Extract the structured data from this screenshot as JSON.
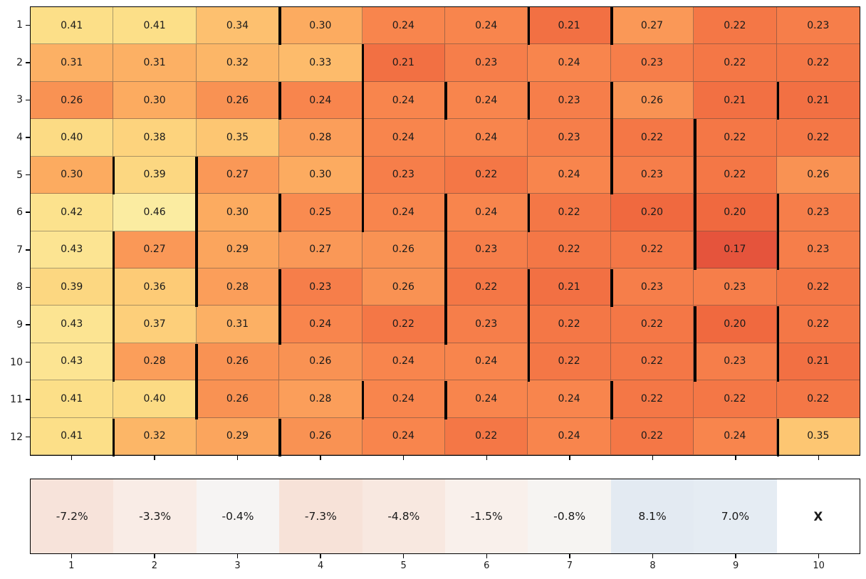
{
  "chart_data": {
    "type": "heatmap",
    "title": "",
    "xlabel": "",
    "ylabel": "",
    "background_color": "#ffffff",
    "text_color": "#1a1a1a",
    "main_heatmap": {
      "row_labels": [
        "1",
        "2",
        "3",
        "4",
        "5",
        "6",
        "7",
        "8",
        "9",
        "10",
        "11",
        "12"
      ],
      "col_labels": [
        "1",
        "2",
        "3",
        "4",
        "5",
        "6",
        "7",
        "8",
        "9",
        "10"
      ],
      "values": [
        [
          0.41,
          0.41,
          0.34,
          0.3,
          0.24,
          0.24,
          0.21,
          0.27,
          0.22,
          0.23
        ],
        [
          0.31,
          0.31,
          0.32,
          0.33,
          0.21,
          0.23,
          0.24,
          0.23,
          0.22,
          0.22
        ],
        [
          0.26,
          0.3,
          0.26,
          0.24,
          0.24,
          0.24,
          0.23,
          0.26,
          0.21,
          0.21
        ],
        [
          0.4,
          0.38,
          0.35,
          0.28,
          0.24,
          0.24,
          0.23,
          0.22,
          0.22,
          0.22
        ],
        [
          0.3,
          0.39,
          0.27,
          0.3,
          0.23,
          0.22,
          0.24,
          0.23,
          0.22,
          0.26
        ],
        [
          0.42,
          0.46,
          0.3,
          0.25,
          0.24,
          0.24,
          0.22,
          0.2,
          0.2,
          0.23
        ],
        [
          0.43,
          0.27,
          0.29,
          0.27,
          0.26,
          0.23,
          0.22,
          0.22,
          0.17,
          0.23
        ],
        [
          0.39,
          0.36,
          0.28,
          0.23,
          0.26,
          0.22,
          0.21,
          0.23,
          0.23,
          0.22
        ],
        [
          0.43,
          0.37,
          0.31,
          0.24,
          0.22,
          0.23,
          0.22,
          0.22,
          0.2,
          0.22
        ],
        [
          0.43,
          0.28,
          0.26,
          0.26,
          0.24,
          0.24,
          0.22,
          0.22,
          0.23,
          0.21
        ],
        [
          0.41,
          0.4,
          0.26,
          0.28,
          0.24,
          0.24,
          0.24,
          0.22,
          0.22,
          0.22
        ],
        [
          0.41,
          0.32,
          0.29,
          0.26,
          0.24,
          0.22,
          0.24,
          0.22,
          0.24,
          0.35
        ]
      ],
      "value_range": [
        0.17,
        0.46
      ],
      "colormap_stops": [
        [
          0.17,
          "#e5543c"
        ],
        [
          0.2,
          "#f0693f"
        ],
        [
          0.24,
          "#f8854d"
        ],
        [
          0.3,
          "#fcab60"
        ],
        [
          0.36,
          "#fdcb76"
        ],
        [
          0.41,
          "#fcdf88"
        ],
        [
          0.46,
          "#fbeca1"
        ]
      ],
      "grid_line_color": "#3c3c3c",
      "spine_color": "#000000",
      "marker_color": "#000000",
      "changepoint_markers": [
        [
          1,
          3
        ],
        [
          1,
          6
        ],
        [
          1,
          7
        ],
        [
          2,
          4
        ],
        [
          3,
          3
        ],
        [
          3,
          4
        ],
        [
          3,
          5
        ],
        [
          3,
          6
        ],
        [
          3,
          7
        ],
        [
          3,
          9
        ],
        [
          4,
          4
        ],
        [
          4,
          7
        ],
        [
          4,
          8
        ],
        [
          5,
          1
        ],
        [
          5,
          2
        ],
        [
          5,
          4
        ],
        [
          5,
          7
        ],
        [
          5,
          8
        ],
        [
          6,
          2
        ],
        [
          6,
          3
        ],
        [
          6,
          4
        ],
        [
          6,
          5
        ],
        [
          6,
          6
        ],
        [
          6,
          8
        ],
        [
          6,
          9
        ],
        [
          7,
          1
        ],
        [
          7,
          2
        ],
        [
          7,
          5
        ],
        [
          7,
          8
        ],
        [
          7,
          9
        ],
        [
          8,
          1
        ],
        [
          8,
          2
        ],
        [
          8,
          3
        ],
        [
          8,
          5
        ],
        [
          8,
          6
        ],
        [
          8,
          7
        ],
        [
          9,
          1
        ],
        [
          9,
          3
        ],
        [
          9,
          5
        ],
        [
          9,
          6
        ],
        [
          9,
          8
        ],
        [
          9,
          9
        ],
        [
          10,
          1
        ],
        [
          10,
          2
        ],
        [
          10,
          6
        ],
        [
          10,
          8
        ],
        [
          10,
          9
        ],
        [
          11,
          2
        ],
        [
          11,
          4
        ],
        [
          11,
          5
        ],
        [
          11,
          7
        ],
        [
          12,
          1
        ],
        [
          12,
          3
        ],
        [
          12,
          9
        ]
      ]
    },
    "bottom_strip": {
      "border_color": "#000000",
      "cells": [
        {
          "label": "-7.2%",
          "color": "#f7e3da"
        },
        {
          "label": "-3.3%",
          "color": "#f9ece6"
        },
        {
          "label": "-0.4%",
          "color": "#f6f4f3"
        },
        {
          "label": "-7.3%",
          "color": "#f7e2d8"
        },
        {
          "label": "-4.8%",
          "color": "#f8e8e0"
        },
        {
          "label": "-1.5%",
          "color": "#f9f0eb"
        },
        {
          "label": "-0.8%",
          "color": "#f6f4f2"
        },
        {
          "label": "8.1%",
          "color": "#e3eaf2"
        },
        {
          "label": "7.0%",
          "color": "#e5ecf3"
        },
        {
          "label": "X",
          "color": "#ffffff",
          "bold": true
        }
      ],
      "tick_labels": [
        "1",
        "2",
        "3",
        "4",
        "5",
        "6",
        "7",
        "8",
        "9",
        "10"
      ]
    }
  }
}
